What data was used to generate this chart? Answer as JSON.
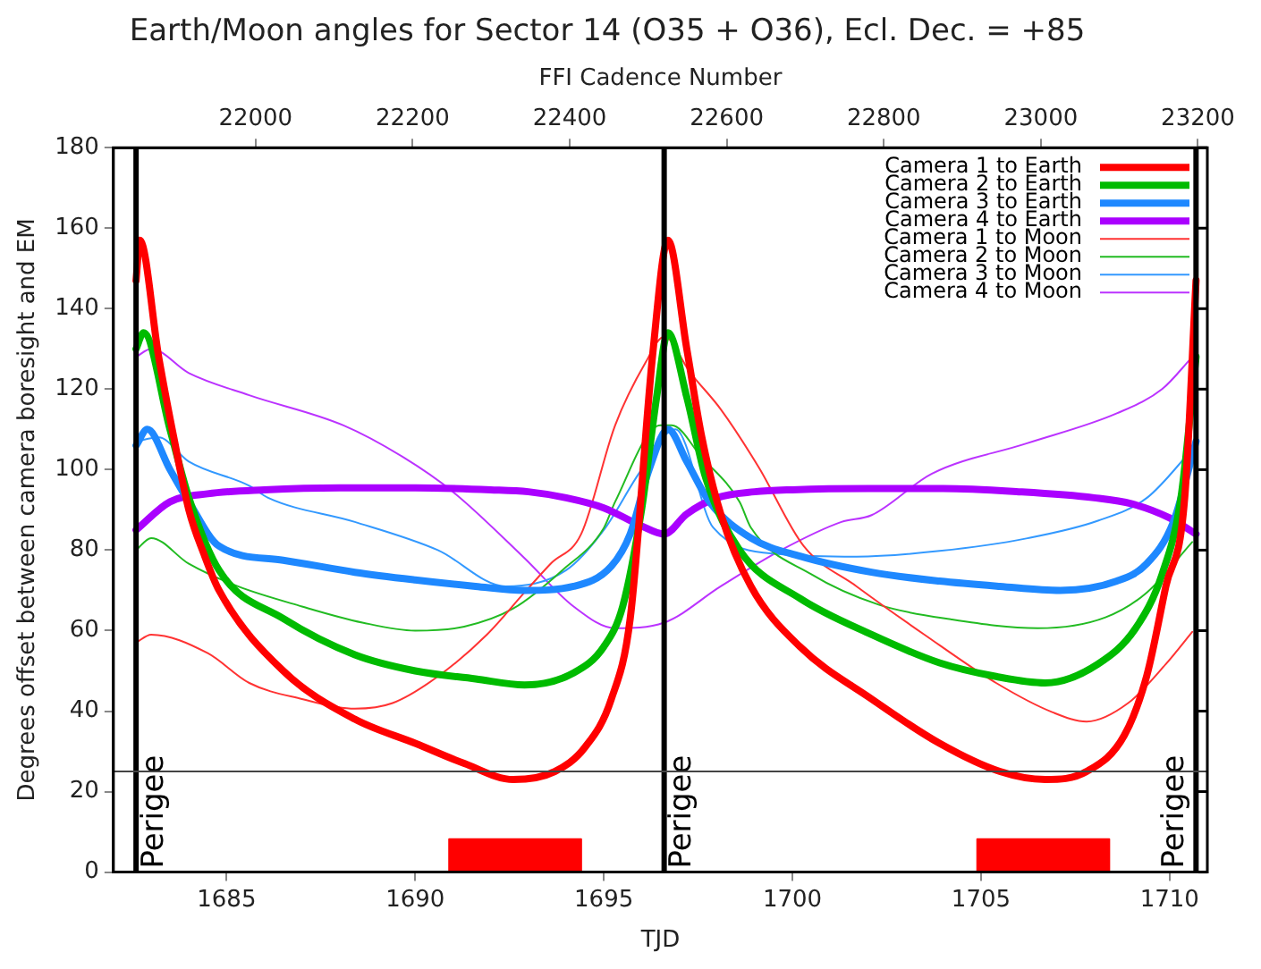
{
  "chart_data": {
    "type": "line",
    "title": "Earth/Moon angles for Sector 14 (O35 + O36), Ecl. Dec. = +85",
    "xlabel": "TJD",
    "ylabel": "Degrees offset between camera boresight and EM",
    "x2label": "FFI Cadence Number",
    "xlim": [
      1682,
      1711
    ],
    "xticks": [
      1685,
      1690,
      1695,
      1700,
      1705,
      1710
    ],
    "ylim": [
      0,
      180
    ],
    "yticks": [
      0,
      20,
      40,
      60,
      80,
      100,
      120,
      140,
      160,
      180
    ],
    "x2lim": [
      21819,
      23212
    ],
    "x2ticks": [
      22000,
      22200,
      22400,
      22600,
      22800,
      23000,
      23200
    ],
    "grid": false,
    "legend": "top right",
    "marker": "none",
    "line_style": "solid",
    "ref_lines": [
      {
        "axis": "x",
        "value": 1682.6,
        "label": "Perigee",
        "color": "#000000"
      },
      {
        "axis": "x",
        "value": 1696.6,
        "label": "Perigee",
        "color": "#000000"
      },
      {
        "axis": "x",
        "value": 1710.7,
        "label": "Perigee",
        "color": "#000000"
      },
      {
        "axis": "y",
        "value": 25,
        "color": "#444444"
      }
    ],
    "series": [
      {
        "name": "Camera 1 to Earth",
        "color": "#ff0000",
        "x": [
          1682.6,
          1682.7,
          1683.2,
          1683.6,
          1684.0,
          1684.4,
          1684.8,
          1686.5,
          1688.4,
          1690.0,
          1691.3,
          1692.6,
          1693.7,
          1694.5,
          1695.2,
          1695.7,
          1696.3,
          1696.7,
          1697.2,
          1697.6,
          1698.1,
          1698.9,
          1700.2,
          1702.1,
          1703.9,
          1705.5,
          1706.7,
          1707.8,
          1708.8,
          1709.4,
          1709.9,
          1710.4,
          1710.7
        ],
        "values": [
          147,
          157,
          128,
          108,
          90,
          79,
          70,
          50,
          38,
          32,
          27,
          23,
          25,
          31,
          43,
          63,
          129,
          157,
          130,
          108,
          89,
          71,
          56,
          43,
          32,
          25,
          23,
          25,
          34,
          49,
          71,
          93,
          147
        ]
      },
      {
        "name": "Camera 2 to Earth",
        "color": "#00bb00",
        "x": [
          1682.6,
          1682.8,
          1683.5,
          1684.0,
          1684.8,
          1686.5,
          1688.4,
          1690.0,
          1691.6,
          1692.9,
          1694.2,
          1695.0,
          1695.5,
          1696.0,
          1696.4,
          1696.7,
          1697.2,
          1697.7,
          1698.6,
          1700.2,
          1702.1,
          1703.9,
          1705.4,
          1706.7,
          1708.1,
          1709.1,
          1709.8,
          1710.3,
          1710.7
        ],
        "values": [
          130,
          134,
          110,
          93,
          75,
          63,
          54,
          50,
          48,
          46.5,
          49.5,
          56,
          66,
          90,
          118,
          134,
          118,
          98,
          80,
          68,
          59,
          52,
          48.6,
          47,
          51.7,
          60.6,
          74,
          93,
          128
        ]
      },
      {
        "name": "Camera 3 to Earth",
        "color": "#1e88ff",
        "x": [
          1682.6,
          1682.9,
          1683.5,
          1684.0,
          1684.8,
          1686.5,
          1688.4,
          1690.0,
          1691.6,
          1692.9,
          1694.2,
          1695.2,
          1695.7,
          1696.2,
          1696.7,
          1697.2,
          1697.8,
          1698.9,
          1700.2,
          1702.1,
          1703.9,
          1705.5,
          1707.1,
          1708.6,
          1709.4,
          1710.1,
          1710.7
        ],
        "values": [
          106,
          110,
          100,
          92,
          81,
          77.5,
          74.5,
          72.6,
          71,
          70,
          71,
          76,
          84,
          100,
          110,
          102,
          92,
          83,
          78.5,
          74.5,
          72.3,
          71,
          70,
          72.3,
          76.7,
          87,
          107
        ]
      },
      {
        "name": "Camera 4 to Earth",
        "color": "#aa00ff",
        "x": [
          1682.6,
          1683.5,
          1684.5,
          1686,
          1688,
          1690,
          1692,
          1693,
          1694,
          1695,
          1696,
          1696.6,
          1697.2,
          1698,
          1699,
          1700,
          1702,
          1704,
          1706,
          1708,
          1709,
          1710,
          1710.7
        ],
        "values": [
          85,
          92,
          94,
          95,
          95.5,
          95.5,
          95,
          94.5,
          93,
          90.5,
          86,
          84,
          89,
          93,
          94.5,
          95,
          95.3,
          95.3,
          94.5,
          93,
          91.5,
          88,
          84
        ]
      },
      {
        "name": "Camera 1 to Moon",
        "color": "#ff3333",
        "x": [
          1682.6,
          1683.0,
          1684.5,
          1685.6,
          1687.0,
          1688.4,
          1689.4,
          1690.6,
          1691.9,
          1692.9,
          1693.6,
          1694.4,
          1695.3,
          1696.1,
          1696.6,
          1697.3,
          1698.1,
          1699.1,
          1700.3,
          1701.7,
          1703.5,
          1705.4,
          1706.9,
          1707.8,
          1708.9,
          1709.9,
          1710.6
        ],
        "values": [
          57,
          59,
          54.4,
          47,
          43,
          40.6,
          42,
          48.6,
          59,
          69.5,
          76.7,
          84,
          111,
          126.5,
          133,
          124,
          115,
          100.7,
          81,
          71,
          59,
          47,
          39.7,
          37.4,
          42,
          51.7,
          59.7
        ]
      },
      {
        "name": "Camera 2 to Moon",
        "color": "#22bb22",
        "x": [
          1682.6,
          1683.0,
          1684.0,
          1685.3,
          1687.0,
          1688.6,
          1690.0,
          1691.3,
          1692.6,
          1693.9,
          1695.0,
          1695.3,
          1696.5,
          1696.8,
          1697.6,
          1698.6,
          1698.9,
          1700.5,
          1702.3,
          1704.2,
          1706.5,
          1708.3,
          1709.4,
          1710.6
        ],
        "values": [
          80,
          83,
          76.6,
          71,
          66,
          62,
          60,
          61,
          65.5,
          75,
          85.5,
          92,
          111,
          111,
          103,
          92,
          85.6,
          74,
          66.4,
          62.8,
          60.6,
          63.3,
          69.5,
          82
        ]
      },
      {
        "name": "Camera 3 to Moon",
        "color": "#3399ff",
        "x": [
          1682.6,
          1683.2,
          1684.0,
          1685.6,
          1686.1,
          1688.4,
          1690.6,
          1692.4,
          1694.0,
          1695.0,
          1696.0,
          1696.9,
          1697.9,
          1699.7,
          1701.7,
          1703.9,
          1706.2,
          1708.1,
          1709.4,
          1710.6
        ],
        "values": [
          107,
          108,
          102,
          96,
          93,
          87,
          80,
          71,
          75,
          85,
          100,
          110,
          85.6,
          79,
          78.4,
          79.8,
          82.9,
          87.3,
          93,
          105
        ]
      },
      {
        "name": "Camera 4 to Moon",
        "color": "#bb33ff",
        "x": [
          1682.6,
          1683.0,
          1684.0,
          1685.6,
          1688.1,
          1689.7,
          1691.0,
          1692.9,
          1694.2,
          1695.3,
          1696.6,
          1698.1,
          1699.7,
          1701.3,
          1702.1,
          1703.7,
          1706.2,
          1708.6,
          1709.8,
          1710.6
        ],
        "values": [
          128,
          130,
          124,
          118.5,
          111,
          103,
          94.5,
          78,
          66,
          60.6,
          62,
          71,
          80,
          87,
          88.7,
          99,
          106.5,
          114,
          120,
          128
        ]
      },
      {
        "type": "area",
        "color": "#ff0000",
        "x": [
          1690.9,
          1690.9,
          1694.4,
          1694.4,
          1700,
          1704.9,
          1704.9,
          1708.4,
          1708.4
        ],
        "values": [
          0,
          8.2,
          8.2,
          0,
          null,
          0,
          8.2,
          8.2,
          0
        ]
      }
    ]
  }
}
